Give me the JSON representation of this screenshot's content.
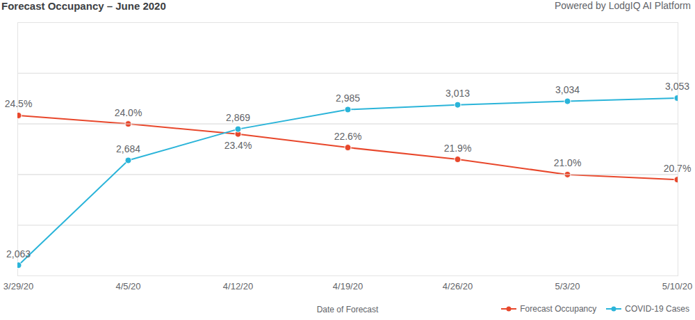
{
  "chart_data": {
    "type": "line",
    "title": "Forecast Occupancy – June 2020",
    "subtitle": "Powered by LodgIQ AI Platform",
    "xlabel": "Date of Forecast",
    "categories": [
      "3/29/20",
      "4/5/20",
      "4/12/20",
      "4/19/20",
      "4/26/20",
      "5/3/20",
      "5/10/20"
    ],
    "series": [
      {
        "name": "Forecast Occupancy",
        "color": "#e8472b",
        "marker": "circle",
        "line_style": "solid",
        "values": [
          24.5,
          24.0,
          23.4,
          22.6,
          21.9,
          21.0,
          20.7
        ],
        "value_labels": [
          "24.5%",
          "24.0%",
          "23.4%",
          "22.6%",
          "21.9%",
          "21.0%",
          "20.7%"
        ]
      },
      {
        "name": "COVID-19 Cases",
        "color": "#2ab4d9",
        "marker": "circle",
        "line_style": "solid",
        "axis": "y2",
        "values": [
          2063,
          2684,
          2869,
          2985,
          3013,
          3034,
          3053
        ],
        "value_labels": [
          "2,063",
          "2,684",
          "2,869",
          "2,985",
          "3,013",
          "3,034",
          "3,053"
        ]
      }
    ],
    "ylim": [
      15,
      30
    ],
    "yticks": [
      18,
      21,
      24,
      27
    ],
    "y2lim": [
      2000,
      3500
    ],
    "y2ticks": [
      2300,
      2600,
      2900,
      3200
    ],
    "grid": true,
    "data_labels": true,
    "tick_labels": "x",
    "legend": "bottom-right"
  }
}
